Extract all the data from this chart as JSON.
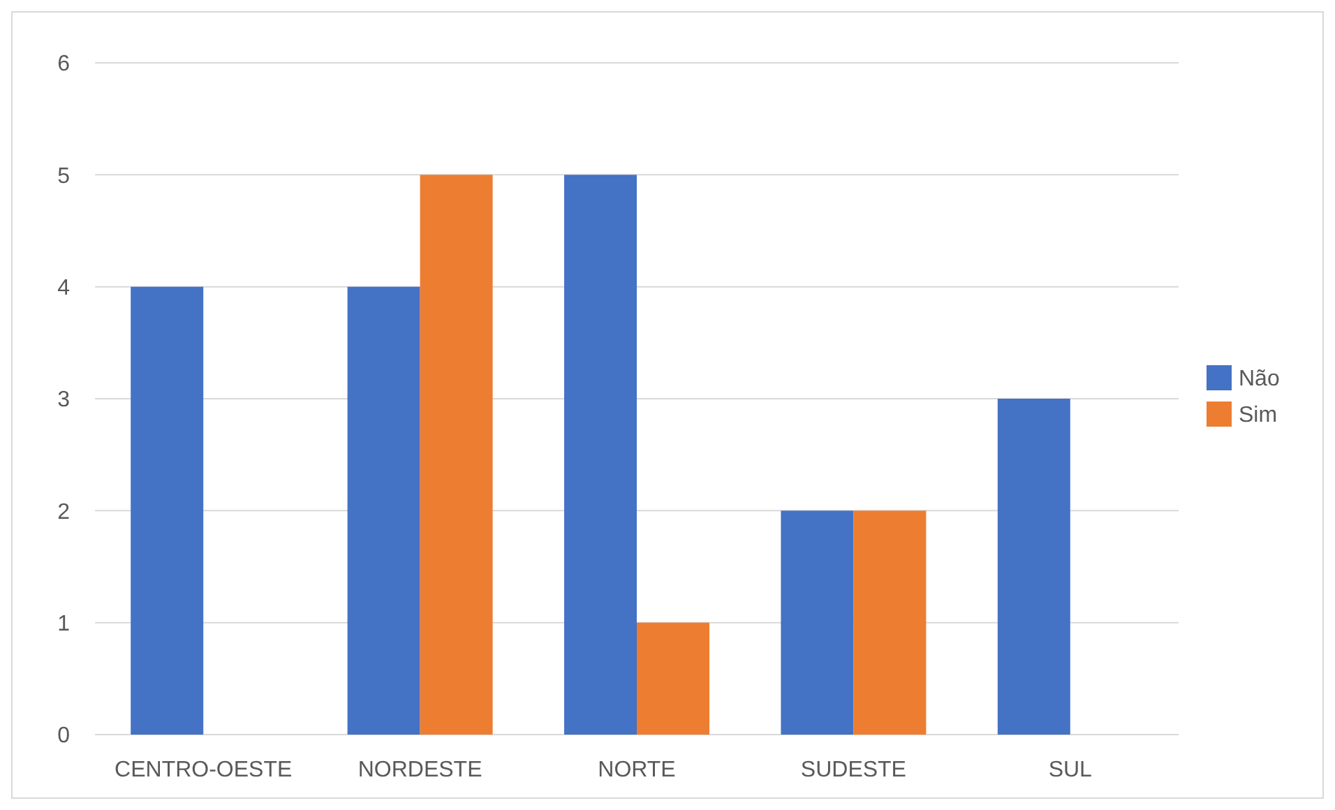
{
  "chart_data": {
    "type": "bar",
    "categories": [
      "CENTRO-OESTE",
      "NORDESTE",
      "NORTE",
      "SUDESTE",
      "SUL"
    ],
    "series": [
      {
        "name": "Não",
        "color": "#4472c4",
        "values": [
          4,
          4,
          5,
          2,
          3
        ]
      },
      {
        "name": "Sim",
        "color": "#ed7d31",
        "values": [
          0,
          5,
          1,
          2,
          0
        ]
      }
    ],
    "ylim": [
      0,
      6
    ],
    "yticks": [
      0,
      1,
      2,
      3,
      4,
      5,
      6
    ],
    "grid": "y",
    "legend": "right"
  }
}
